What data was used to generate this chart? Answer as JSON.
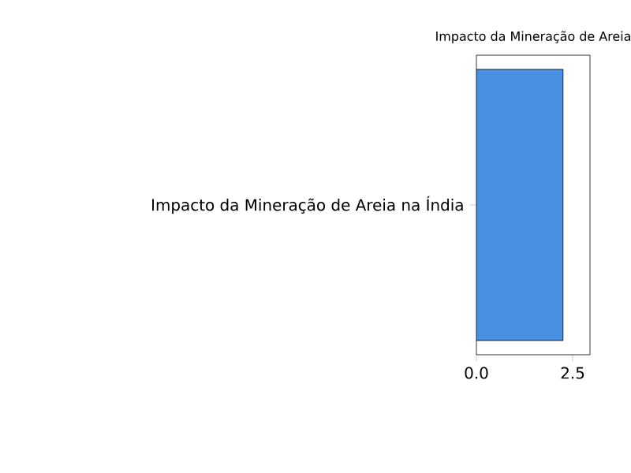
{
  "chart_data": {
    "type": "bar",
    "orientation": "horizontal",
    "title": "Impacto da Mineração de Areia",
    "categories": [
      "Impacto da Mineração de Areia na Índia"
    ],
    "values": [
      2.25
    ],
    "color": "#4a90e2",
    "xlim": [
      0,
      2.95
    ],
    "xticks": [
      {
        "value": 0,
        "label": "0.0"
      },
      {
        "value": 2.5,
        "label": "2.5"
      }
    ],
    "grid": false
  }
}
